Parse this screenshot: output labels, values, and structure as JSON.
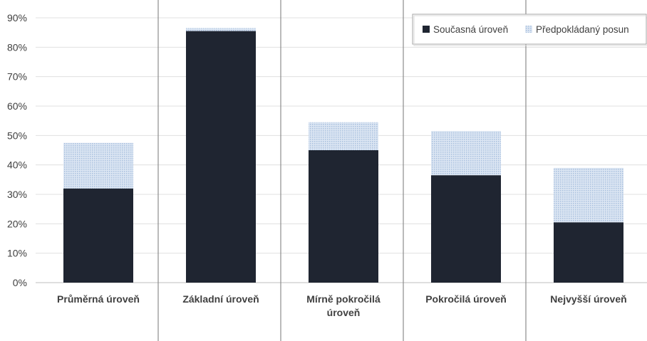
{
  "chart_data": {
    "type": "bar",
    "stacked": true,
    "categories": [
      [
        "Průměrná úroveň"
      ],
      [
        "Základní úroveň"
      ],
      [
        "Mírně pokročilá",
        "úroveň"
      ],
      [
        "Pokročilá úroveň"
      ],
      [
        "Nejvyšší úroveň"
      ]
    ],
    "series": [
      {
        "name": "Současná úroveň",
        "values": [
          32,
          85.5,
          45,
          36.5,
          20.5
        ],
        "color": "#1f2531",
        "pattern": "solid"
      },
      {
        "name": "Předpokládaný posun",
        "values": [
          15.5,
          1,
          9.5,
          15,
          18.5
        ],
        "color": "#c5d5ea",
        "pattern": "dotted"
      }
    ],
    "y_ticks": [
      "0%",
      "10%",
      "20%",
      "30%",
      "40%",
      "50%",
      "60%",
      "70%",
      "80%",
      "90%"
    ],
    "ylim": [
      0,
      90
    ],
    "grid": true,
    "legend_position": "top-right"
  }
}
